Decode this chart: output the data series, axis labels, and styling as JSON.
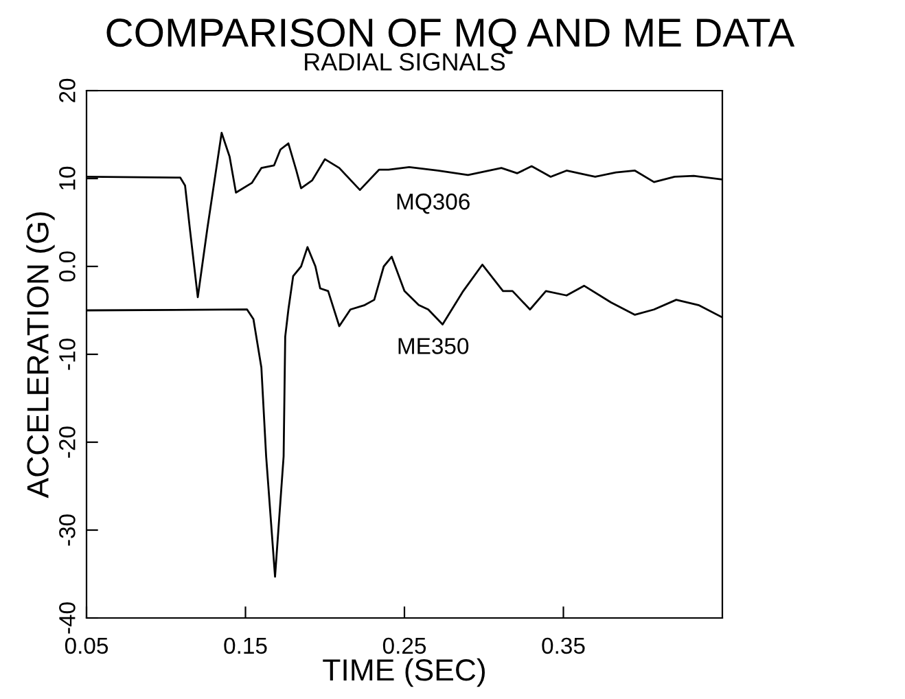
{
  "chart_data": {
    "type": "line",
    "title": "COMPARISON OF MQ AND ME DATA",
    "subtitle": "RADIAL SIGNALS",
    "xlabel": "TIME (SEC)",
    "ylabel": "ACCELERATION (G)",
    "xlim": [
      0.05,
      0.45
    ],
    "xticks": [
      0.05,
      0.15,
      0.25,
      0.35
    ],
    "ylim": [
      -40,
      20
    ],
    "yticks": [
      -40,
      -30,
      -20,
      -10,
      {
        "value": 0,
        "label": "0.0"
      },
      10,
      20
    ],
    "grid": false,
    "legend": false,
    "marker": "none",
    "line_style": "solid",
    "series": [
      {
        "name": "MQ306",
        "color": "#000000",
        "x": [
          0.05,
          0.109,
          0.112,
          0.115,
          0.12,
          0.126,
          0.135,
          0.14,
          0.144,
          0.154,
          0.16,
          0.168,
          0.172,
          0.177,
          0.182,
          0.185,
          0.192,
          0.2,
          0.209,
          0.222,
          0.234,
          0.24,
          0.253,
          0.271,
          0.29,
          0.311,
          0.321,
          0.33,
          0.342,
          0.352,
          0.37,
          0.383,
          0.395,
          0.407,
          0.42,
          0.432,
          0.45
        ],
        "values": [
          10.2,
          10.1,
          9.2,
          4.3,
          -3.5,
          4.3,
          15.2,
          12.5,
          8.4,
          9.5,
          11.2,
          11.5,
          13.3,
          14.0,
          10.9,
          8.9,
          9.8,
          12.2,
          11.2,
          8.7,
          11.0,
          11.0,
          11.3,
          10.9,
          10.4,
          11.2,
          10.6,
          11.4,
          10.2,
          10.9,
          10.2,
          10.7,
          10.9,
          9.6,
          10.2,
          10.3,
          9.9
        ]
      },
      {
        "name": "ME350",
        "color": "#000000",
        "x": [
          0.05,
          0.151,
          0.155,
          0.16,
          0.163,
          0.1686,
          0.174,
          0.175,
          0.177,
          0.18,
          0.185,
          0.189,
          0.194,
          0.197,
          0.202,
          0.209,
          0.216,
          0.225,
          0.231,
          0.237,
          0.242,
          0.25,
          0.259,
          0.265,
          0.274,
          0.287,
          0.299,
          0.312,
          0.318,
          0.329,
          0.339,
          0.352,
          0.363,
          0.38,
          0.395,
          0.407,
          0.421,
          0.435,
          0.45
        ],
        "values": [
          -5.0,
          -4.9,
          -6.0,
          -11.5,
          -21.6,
          -35.3,
          -21.6,
          -8.0,
          -4.9,
          -1.1,
          0,
          2.2,
          0,
          -2.5,
          -2.8,
          -6.8,
          -4.9,
          -4.4,
          -3.8,
          0,
          1.1,
          -2.8,
          -4.4,
          -4.9,
          -6.6,
          -2.8,
          0.2,
          -2.8,
          -2.8,
          -4.9,
          -2.8,
          -3.3,
          -2.2,
          -4.1,
          -5.5,
          -4.9,
          -3.8,
          -4.4,
          -5.8
        ]
      }
    ]
  }
}
